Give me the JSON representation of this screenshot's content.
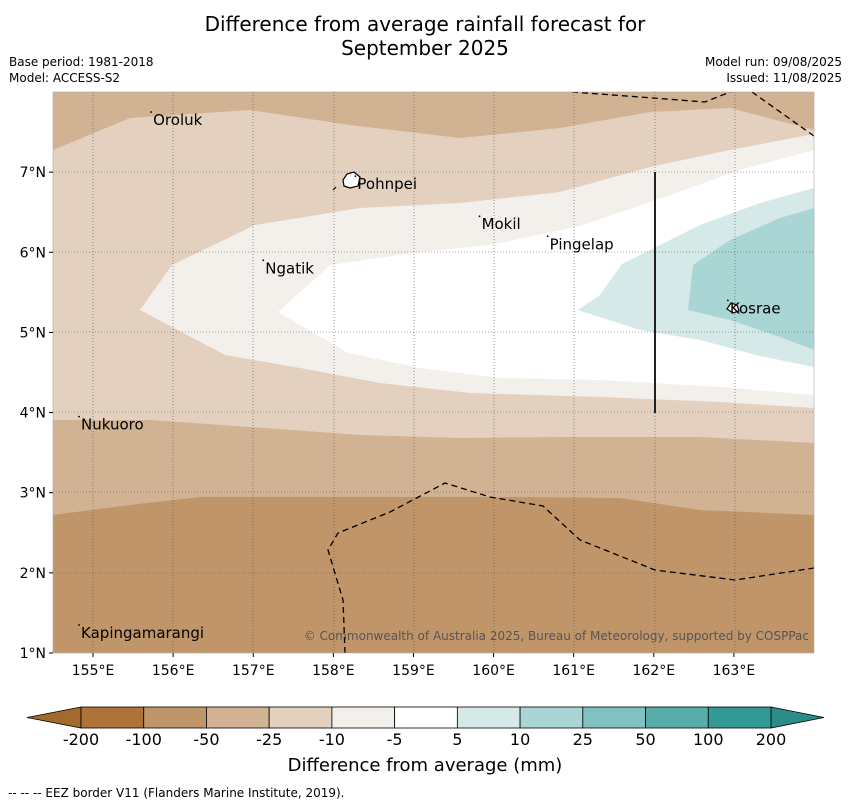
{
  "title": {
    "line1": "Difference from average rainfall forecast for",
    "line2": "September 2025"
  },
  "meta": {
    "base_period": "Base period: 1981-2018",
    "model": "Model: ACCESS-S2",
    "model_run": "Model run: 09/08/2025",
    "issued": "Issued: 11/08/2025"
  },
  "map": {
    "lon_range": [
      154.5,
      164.0
    ],
    "lat_range": [
      1.0,
      8.0
    ],
    "lon_ticks": [
      "155°E",
      "156°E",
      "157°E",
      "158°E",
      "159°E",
      "160°E",
      "161°E",
      "162°E",
      "163°E"
    ],
    "lat_ticks": [
      "1°N",
      "2°N",
      "3°N",
      "4°N",
      "5°N",
      "6°N",
      "7°N"
    ],
    "places": [
      {
        "name": "Oroluk",
        "lon": 155.75,
        "lat": 7.65
      },
      {
        "name": "Pohnpei",
        "lon": 158.3,
        "lat": 6.85
      },
      {
        "name": "Mokil",
        "lon": 159.85,
        "lat": 6.35
      },
      {
        "name": "Pingelap",
        "lon": 160.7,
        "lat": 6.1
      },
      {
        "name": "Ngatik",
        "lon": 157.15,
        "lat": 5.8
      },
      {
        "name": "Kosrae",
        "lon": 162.95,
        "lat": 5.3
      },
      {
        "name": "Nukuoro",
        "lon": 154.85,
        "lat": 3.85
      },
      {
        "name": "Kapingamarangi",
        "lon": 154.85,
        "lat": 1.25
      }
    ],
    "copyright": "© Commonwealth of Australia 2025, Bureau of Meteorology, supported by COSPPac"
  },
  "colorbar": {
    "labels": [
      "-200",
      "-100",
      "-50",
      "-25",
      "-10",
      "-5",
      "5",
      "10",
      "25",
      "50",
      "100",
      "200"
    ],
    "colors": [
      "#ae7338",
      "#c0956a",
      "#d1b292",
      "#e3d0bf",
      "#f3efea",
      "#ffffff",
      "#d4e9e8",
      "#a9d5d4",
      "#80c2c0",
      "#58adaa",
      "#339996"
    ],
    "under_color": "#a36a30",
    "over_color": "#2a8d8a",
    "title": "Difference from average (mm)"
  },
  "footnote": "-- -- -- EEZ border V11 (Flanders Marine Institute, 2019)."
}
